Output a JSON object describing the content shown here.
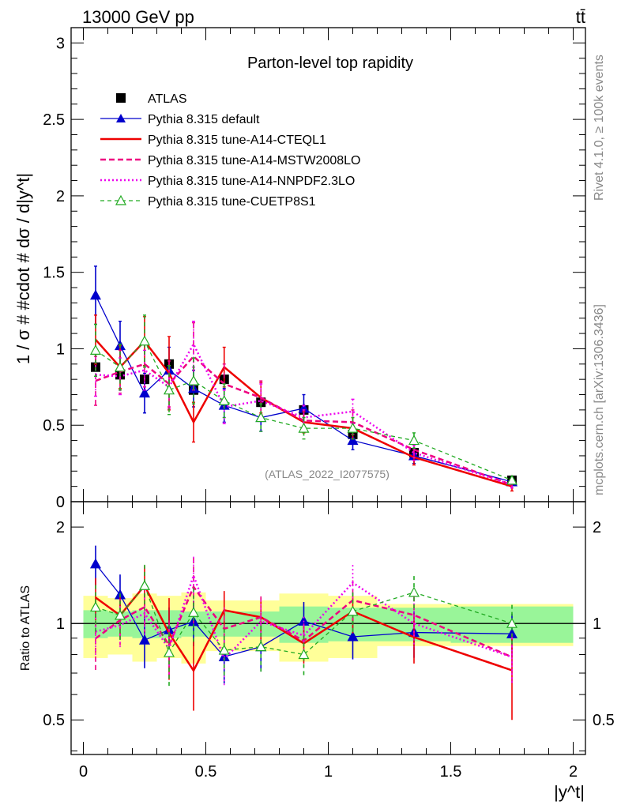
{
  "header": {
    "left": "13000 GeV pp",
    "right": "tt̄",
    "side_top": "Rivet 4.1.0, ≥ 100k events",
    "side_bottom": "mcplots.cern.ch [arXiv:1306.3436]"
  },
  "chart_data": {
    "type": "line",
    "title": "Parton-level top rapidity",
    "analysis": "(ATLAS_2022_I2077575)",
    "ylabel": "1 / σ # #cdot # dσ / d|y^t|",
    "xlabel": "|y^t|",
    "ratio_ylabel": "Ratio to ATLAS",
    "xlim": [
      -0.05,
      2.05
    ],
    "ylim": [
      0,
      3.1
    ],
    "ratio_ylim": [
      0.39,
      2.4
    ],
    "x_ticks": [
      0,
      0.5,
      1,
      1.5,
      2
    ],
    "x_tick_labels": [
      "0",
      "0.5",
      "1",
      "1.5",
      "2"
    ],
    "y_ticks": [
      0.5,
      1,
      1.5,
      2,
      2.5,
      3
    ],
    "y_tick_labels": [
      "0.5",
      "1",
      "1.5",
      "2",
      "2.5",
      "3"
    ],
    "y_zero_label": "0",
    "ratio_ticks": [
      0.5,
      1,
      2
    ],
    "ratio_tick_labels": [
      "0.5",
      "1",
      "2"
    ],
    "x": [
      0.05,
      0.15,
      0.25,
      0.35,
      0.45,
      0.575,
      0.725,
      0.9,
      1.1,
      1.35,
      1.75
    ],
    "bin_edges": [
      0,
      0.1,
      0.2,
      0.3,
      0.4,
      0.5,
      0.65,
      0.8,
      1.0,
      1.2,
      1.5,
      2.0
    ],
    "data": {
      "name": "ATLAS",
      "values": [
        0.88,
        0.83,
        0.8,
        0.9,
        0.73,
        0.8,
        0.65,
        0.6,
        0.44,
        0.32,
        0.14
      ],
      "errors": [
        0.03,
        0.03,
        0.03,
        0.03,
        0.03,
        0.03,
        0.02,
        0.02,
        0.02,
        0.02,
        0.01
      ],
      "band_inner": [
        0.1,
        0.09,
        0.1,
        0.1,
        0.09,
        0.09,
        0.09,
        0.13,
        0.12,
        0.12,
        0.13
      ],
      "band_outer": [
        0.22,
        0.2,
        0.24,
        0.22,
        0.25,
        0.18,
        0.18,
        0.24,
        0.22,
        0.15,
        0.15
      ]
    },
    "series": [
      {
        "name": "Pythia 8.315 default",
        "color": "#0000cc",
        "style": "solid",
        "marker": "triangle-filled",
        "values": [
          1.35,
          1.02,
          0.71,
          0.86,
          0.74,
          0.63,
          0.55,
          0.61,
          0.4,
          0.3,
          0.13
        ],
        "errors": [
          0.19,
          0.16,
          0.13,
          0.15,
          0.12,
          0.11,
          0.09,
          0.09,
          0.06,
          0.05,
          0.02
        ]
      },
      {
        "name": "Pythia 8.315 tune-A14-CTEQL1",
        "color": "#ee0000",
        "style": "solid",
        "marker": "none",
        "values": [
          1.06,
          0.88,
          1.05,
          0.84,
          0.52,
          0.88,
          0.68,
          0.52,
          0.48,
          0.29,
          0.1
        ],
        "errors": [
          0.16,
          0.14,
          0.16,
          0.24,
          0.13,
          0.13,
          0.1,
          0.07,
          0.07,
          0.05,
          0.03
        ]
      },
      {
        "name": "Pythia 8.315 tune-A14-MSTW2008LO",
        "color": "#ee0080",
        "style": "dashed",
        "marker": "none",
        "values": [
          0.79,
          0.85,
          0.9,
          0.77,
          0.95,
          0.77,
          0.68,
          0.53,
          0.52,
          0.34,
          0.11
        ],
        "errors": [
          0.16,
          0.14,
          0.15,
          0.15,
          0.22,
          0.13,
          0.11,
          0.07,
          0.08,
          0.05,
          0.02
        ]
      },
      {
        "name": "Pythia 8.315 tune-A14-NNPDF2.3LO",
        "color": "#ee00ee",
        "style": "dotted",
        "marker": "none",
        "values": [
          0.83,
          0.82,
          0.86,
          0.75,
          1.03,
          0.62,
          0.66,
          0.55,
          0.59,
          0.32,
          0.11
        ],
        "errors": [
          0.14,
          0.12,
          0.13,
          0.14,
          0.15,
          0.11,
          0.11,
          0.08,
          0.08,
          0.05,
          0.02
        ]
      },
      {
        "name": "Pythia 8.315 tune-CUETP8S1",
        "color": "#22aa22",
        "style": "dashed",
        "marker": "triangle-open",
        "values": [
          0.99,
          0.88,
          1.05,
          0.73,
          0.79,
          0.66,
          0.55,
          0.48,
          0.48,
          0.4,
          0.14
        ],
        "errors": [
          0.17,
          0.15,
          0.17,
          0.16,
          0.15,
          0.11,
          0.09,
          0.07,
          0.07,
          0.05,
          0.02
        ]
      }
    ]
  }
}
